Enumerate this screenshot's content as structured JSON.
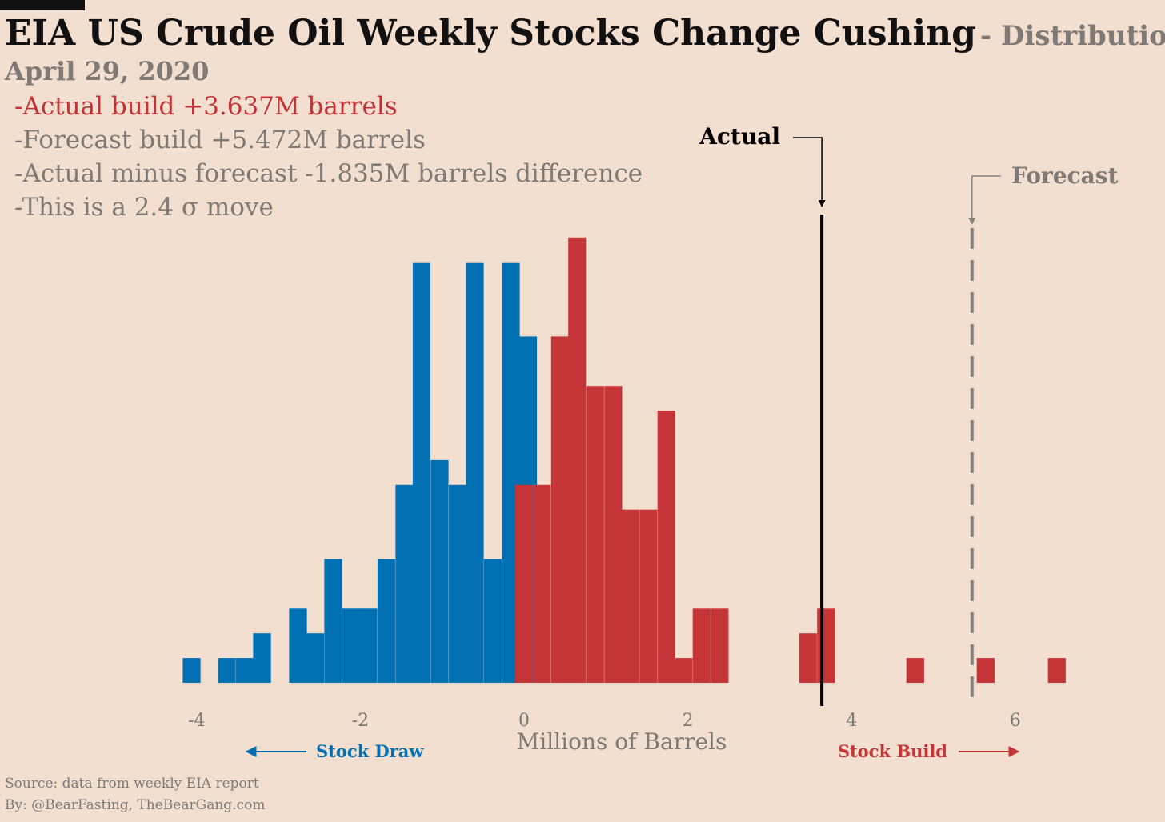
{
  "header": {
    "title": "EIA US Crude Oil Weekly Stocks Change Cushing",
    "subtitle": "- Distribution",
    "date": "April 29, 2020",
    "notes": [
      "-Actual build +3.637M barrels",
      "-Forecast build +5.472M barrels",
      "-Actual minus forecast  -1.835M barrels difference",
      "-This is a 2.4 σ move"
    ]
  },
  "footer": {
    "source": "Source: data from  weekly EIA report",
    "by": "By: @BearFasting, TheBearGang.com"
  },
  "colors": {
    "draw": "#0070b2",
    "build": "#c53537",
    "forecast": "#858280",
    "actual": "#000000",
    "text_muted": "#7f7a76"
  },
  "chart_data": {
    "type": "bar",
    "xlabel": "Millions of Barrels",
    "ylabel": "",
    "xlim": [
      -4.2,
      6.6
    ],
    "x_ticks": [
      -4,
      -2,
      0,
      2,
      4,
      6
    ],
    "x_tick_labels": [
      "-4",
      "-2",
      "0",
      "2",
      "4",
      "6"
    ],
    "ylim": [
      0,
      19
    ],
    "bin_width": 0.217,
    "series": [
      {
        "name": "Stock Draw",
        "bins": [
          {
            "x0": -4.17,
            "count": 1
          },
          {
            "x0": -3.74,
            "count": 1
          },
          {
            "x0": -3.52,
            "count": 1
          },
          {
            "x0": -3.31,
            "count": 2
          },
          {
            "x0": -2.87,
            "count": 3
          },
          {
            "x0": -2.66,
            "count": 2
          },
          {
            "x0": -2.44,
            "count": 5
          },
          {
            "x0": -2.22,
            "count": 3
          },
          {
            "x0": -2.01,
            "count": 3
          },
          {
            "x0": -1.79,
            "count": 5
          },
          {
            "x0": -1.57,
            "count": 8
          },
          {
            "x0": -1.36,
            "count": 17
          },
          {
            "x0": -1.14,
            "count": 9
          },
          {
            "x0": -0.92,
            "count": 8
          },
          {
            "x0": -0.71,
            "count": 17
          },
          {
            "x0": -0.49,
            "count": 5
          },
          {
            "x0": -0.27,
            "count": 17
          },
          {
            "x0": -0.06,
            "count": 14
          }
        ]
      },
      {
        "name": "Stock Build",
        "bins": [
          {
            "x0": -0.11,
            "count": 8
          },
          {
            "x0": 0.11,
            "count": 8
          },
          {
            "x0": 0.33,
            "count": 14
          },
          {
            "x0": 0.54,
            "count": 18
          },
          {
            "x0": 0.76,
            "count": 12
          },
          {
            "x0": 0.98,
            "count": 12
          },
          {
            "x0": 1.19,
            "count": 7
          },
          {
            "x0": 1.41,
            "count": 7
          },
          {
            "x0": 1.63,
            "count": 11
          },
          {
            "x0": 1.84,
            "count": 1
          },
          {
            "x0": 2.06,
            "count": 3
          },
          {
            "x0": 2.28,
            "count": 3
          },
          {
            "x0": 3.36,
            "count": 2
          },
          {
            "x0": 3.58,
            "count": 3
          },
          {
            "x0": 4.67,
            "count": 1
          },
          {
            "x0": 5.53,
            "count": 1
          },
          {
            "x0": 6.4,
            "count": 1
          }
        ]
      }
    ],
    "annotations": {
      "actual": {
        "label": "Actual",
        "x": 3.637
      },
      "forecast": {
        "label": "Forecast",
        "x": 5.472
      },
      "draw_label": "Stock Draw",
      "build_label": "Stock Build"
    }
  }
}
